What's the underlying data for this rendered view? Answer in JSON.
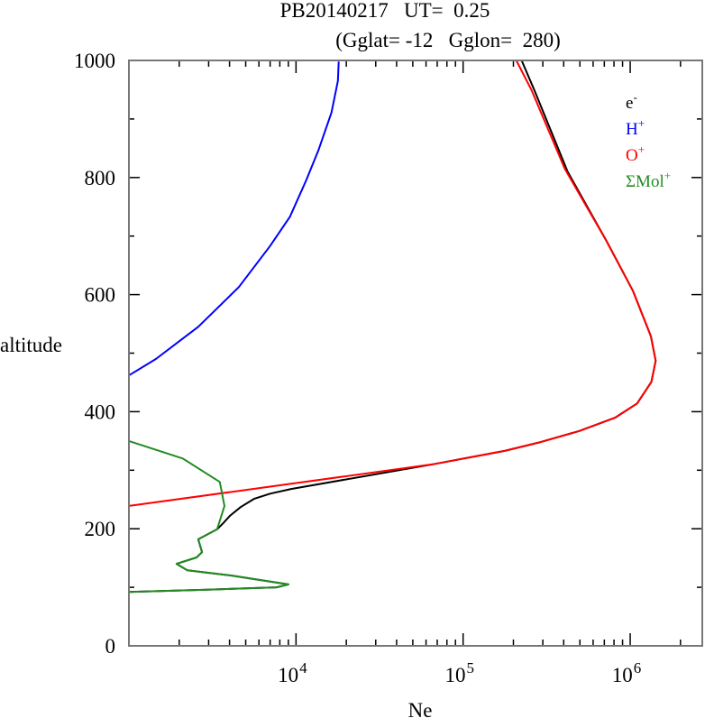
{
  "chart_data": {
    "type": "line",
    "title": "PB20140217   UT=  0.25",
    "subtitle": "(Gglat= -12   Gglon=  280)",
    "xlabel": "Ne",
    "ylabel": "altitude",
    "xscale": "log",
    "xlim": [
      1000,
      2700000
    ],
    "ylim": [
      0,
      1000
    ],
    "yticks": [
      0,
      200,
      400,
      600,
      800,
      1000
    ],
    "ytick_labels": [
      "0",
      "200",
      "400",
      "600",
      "800",
      "1000"
    ],
    "xticks": [
      10000,
      100000,
      1000000
    ],
    "xtick_labels": [
      {
        "base": "10",
        "exp": "4"
      },
      {
        "base": "10",
        "exp": "5"
      },
      {
        "base": "10",
        "exp": "6"
      }
    ],
    "legend_placement": "top-right",
    "series": [
      {
        "name": "e",
        "sup": "-",
        "color": "#000000",
        "points": [
          [
            224000,
            1000
          ],
          [
            267000,
            949
          ],
          [
            422000,
            810
          ],
          [
            720000,
            692
          ],
          [
            1040000,
            606
          ],
          [
            1330000,
            529
          ],
          [
            1420000,
            487
          ],
          [
            1340000,
            451
          ],
          [
            1100000,
            414
          ],
          [
            815000,
            390
          ],
          [
            496000,
            367
          ],
          [
            291000,
            348
          ],
          [
            177000,
            333
          ],
          [
            65600,
            310
          ],
          [
            9340,
            268
          ],
          [
            7000,
            260
          ],
          [
            5600,
            251
          ],
          [
            4660,
            237
          ],
          [
            4020,
            222
          ],
          [
            3680,
            210
          ],
          [
            3370,
            199
          ],
          [
            2600,
            182
          ],
          [
            2740,
            160
          ],
          [
            2540,
            151
          ],
          [
            1930,
            140
          ],
          [
            2240,
            129
          ],
          [
            4120,
            120
          ],
          [
            7660,
            108
          ],
          [
            9000,
            105
          ],
          [
            7660,
            100
          ],
          [
            2940,
            96
          ],
          [
            1000,
            92
          ]
        ]
      },
      {
        "name": "H",
        "sup": "+",
        "color": "#0000ff",
        "points": [
          [
            18000,
            998
          ],
          [
            17800,
            965
          ],
          [
            16300,
            911
          ],
          [
            13600,
            846
          ],
          [
            11500,
            795
          ],
          [
            9200,
            733
          ],
          [
            7000,
            683
          ],
          [
            4550,
            613
          ],
          [
            2600,
            545
          ],
          [
            1450,
            490
          ],
          [
            1000,
            462
          ]
        ]
      },
      {
        "name": "O",
        "sup": "+",
        "color": "#ff0000",
        "points": [
          [
            208000,
            1000
          ],
          [
            257000,
            949
          ],
          [
            406000,
            815
          ],
          [
            541000,
            753
          ],
          [
            720000,
            692
          ],
          [
            1040000,
            606
          ],
          [
            1330000,
            529
          ],
          [
            1420000,
            487
          ],
          [
            1340000,
            451
          ],
          [
            1100000,
            414
          ],
          [
            815000,
            390
          ],
          [
            496000,
            367
          ],
          [
            291000,
            348
          ],
          [
            177000,
            333
          ],
          [
            65600,
            310
          ],
          [
            1000,
            239
          ]
        ]
      },
      {
        "name": "ΣMol",
        "sup": "+",
        "color": "#228b22",
        "points": [
          [
            1000,
            350
          ],
          [
            2100,
            320
          ],
          [
            3500,
            280
          ],
          [
            3730,
            239
          ],
          [
            3370,
            199
          ],
          [
            2600,
            182
          ],
          [
            2740,
            160
          ],
          [
            2540,
            151
          ],
          [
            1930,
            140
          ],
          [
            2240,
            129
          ],
          [
            4120,
            120
          ],
          [
            7660,
            108
          ],
          [
            9000,
            105
          ],
          [
            7660,
            100
          ],
          [
            2940,
            96
          ],
          [
            1000,
            92
          ]
        ]
      }
    ]
  }
}
